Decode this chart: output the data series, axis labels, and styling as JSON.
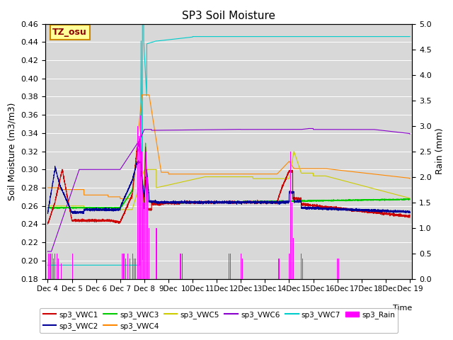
{
  "title": "SP3 Soil Moisture",
  "ylabel_left": "Soil Moisture (m3/m3)",
  "ylabel_right": "Rain (mm)",
  "xlabel": "Time",
  "ylim_left": [
    0.18,
    0.46
  ],
  "ylim_right": [
    0.0,
    5.0
  ],
  "colors": {
    "sp3_VWC1": "#cc0000",
    "sp3_VWC2": "#000099",
    "sp3_VWC3": "#00cc00",
    "sp3_VWC4": "#ff8800",
    "sp3_VWC5": "#cccc00",
    "sp3_VWC6": "#8800cc",
    "sp3_VWC7": "#00cccc",
    "sp3_Rain": "#ff00ff"
  },
  "background_color": "#d8d8d8",
  "legend_box_color": "#ffff99",
  "legend_box_edge": "#cc8800",
  "TZ_label": "TZ_osu"
}
